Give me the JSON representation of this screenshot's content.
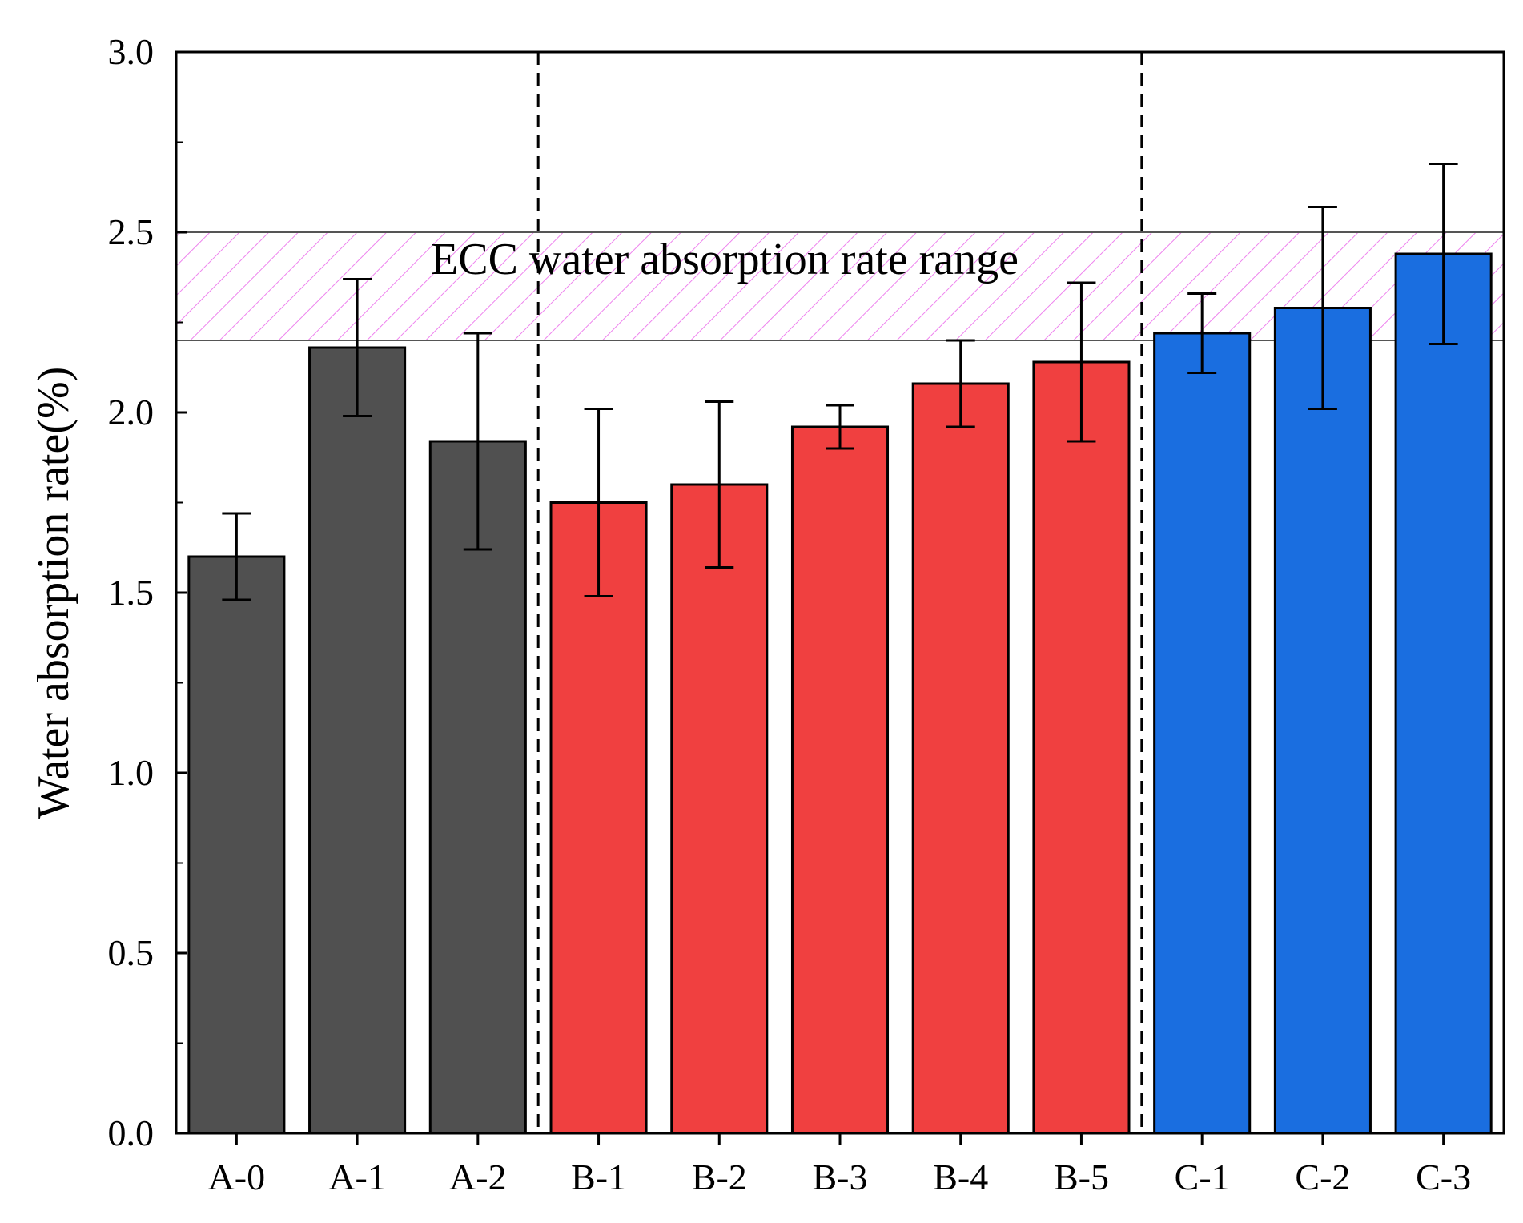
{
  "chart_data": {
    "type": "bar",
    "title": "",
    "xlabel": "",
    "ylabel": "Water absorption rate(%)",
    "ylim": [
      0,
      3.0
    ],
    "yticks": [
      0.0,
      0.5,
      1.0,
      1.5,
      2.0,
      2.5,
      3.0
    ],
    "ytick_labels": [
      "0.0",
      "0.5",
      "1.0",
      "1.5",
      "2.0",
      "2.5",
      "3.0"
    ],
    "grid": false,
    "categories": [
      "A-0",
      "A-1",
      "A-2",
      "B-1",
      "B-2",
      "B-3",
      "B-4",
      "B-5",
      "C-1",
      "C-2",
      "C-3"
    ],
    "values": [
      1.6,
      2.18,
      1.92,
      1.75,
      1.8,
      1.96,
      2.08,
      2.14,
      2.22,
      2.29,
      2.44
    ],
    "errors": [
      0.12,
      0.19,
      0.3,
      0.26,
      0.23,
      0.06,
      0.12,
      0.22,
      0.11,
      0.28,
      0.25
    ],
    "groups": [
      {
        "name": "A",
        "start": 0,
        "end": 2,
        "color": "#505050"
      },
      {
        "name": "B",
        "start": 3,
        "end": 7,
        "color": "#f04040"
      },
      {
        "name": "C",
        "start": 8,
        "end": 10,
        "color": "#1a6ee0"
      }
    ],
    "group_dividers_after": [
      2,
      7
    ],
    "band": {
      "label": "ECC water absorption rate range",
      "ymin": 2.2,
      "ymax": 2.5,
      "hatch_color": "#ee82ee"
    }
  }
}
